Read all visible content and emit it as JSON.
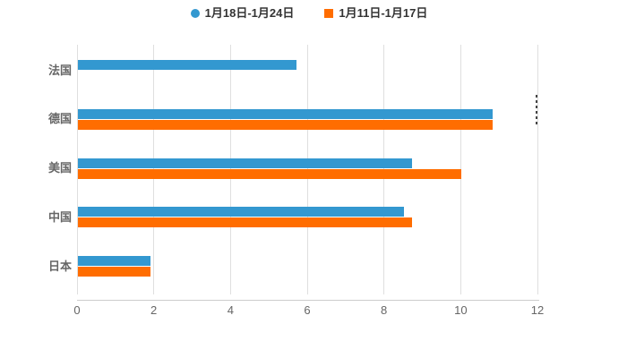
{
  "chart_data": {
    "type": "bar",
    "orientation": "horizontal",
    "title": "",
    "categories": [
      "法国",
      "德国",
      "美国",
      "中国",
      "日本"
    ],
    "series": [
      {
        "name": "1月18日-1月24日",
        "color": "#3398D0",
        "marker": "circle",
        "values": [
          5.7,
          10.8,
          8.7,
          8.5,
          1.9
        ]
      },
      {
        "name": "1月11日-1月17日",
        "color": "#FF6D00",
        "marker": "square",
        "values": [
          null,
          10.8,
          10,
          8.7,
          1.9
        ]
      }
    ],
    "xlim": [
      0,
      12
    ],
    "x_ticks": [
      "0",
      "2",
      "4",
      "6",
      "8",
      "10",
      "12"
    ],
    "grid": "vertical-only",
    "legend_position": "top-center"
  },
  "colors": {
    "background": "#FFFFFF",
    "gridline": "#DFDFDF",
    "axis_line": "#CCCCCC",
    "tick_label": "#666666",
    "category_label": "#666666",
    "legend_text": "#333333"
  }
}
